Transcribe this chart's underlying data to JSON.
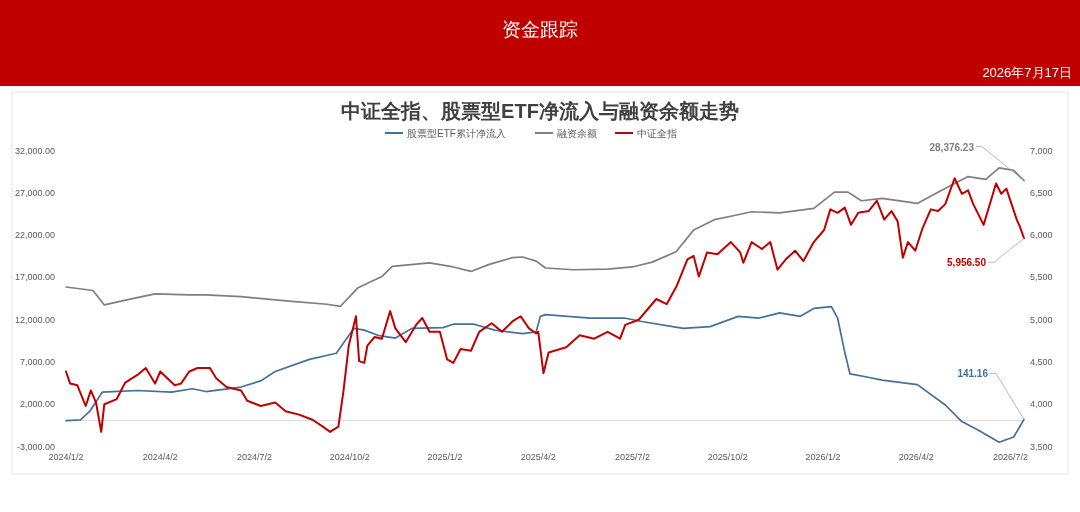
{
  "chart_data": {
    "type": "line",
    "title": "中证全指、股票型ETF净流入与融资余额走势",
    "annotations": [
      "资金跟踪",
      "2026年7月17日"
    ],
    "legend": "top",
    "xlim": [
      "2024-01-02",
      "2026-07-15"
    ],
    "xticks": [
      {
        "value": "2024-01-02",
        "label": "2024/1/2"
      },
      {
        "value": "2024-04-02",
        "label": "2024/4/2"
      },
      {
        "value": "2024-07-02",
        "label": "2024/7/2"
      },
      {
        "value": "2024-10-02",
        "label": "2024/10/2"
      },
      {
        "value": "2025-01-02",
        "label": "2025/1/2"
      },
      {
        "value": "2025-04-02",
        "label": "2025/4/2"
      },
      {
        "value": "2025-07-02",
        "label": "2025/7/2"
      },
      {
        "value": "2025-10-02",
        "label": "2025/10/2"
      },
      {
        "value": "2026-01-02",
        "label": "2026/1/2"
      },
      {
        "value": "2026-04-02",
        "label": "2026/4/2"
      },
      {
        "value": "2026-07-02",
        "label": "2026/7/2"
      }
    ],
    "ylim": [
      -3000,
      32000
    ],
    "yticks": [
      {
        "value": -3000,
        "label": "-3,000.00"
      },
      {
        "value": 2000,
        "label": "2,000.00"
      },
      {
        "value": 7000,
        "label": "7,000.00"
      },
      {
        "value": 12000,
        "label": "12,000.00"
      },
      {
        "value": 17000,
        "label": "17,000.00"
      },
      {
        "value": 22000,
        "label": "22,000.00"
      },
      {
        "value": 27000,
        "label": "27,000.00"
      },
      {
        "value": 32000,
        "label": "32,000.00"
      }
    ],
    "y2lim": [
      3500,
      7000
    ],
    "y2ticks": [
      {
        "value": 3500,
        "label": "3,500"
      },
      {
        "value": 4000,
        "label": "4,000"
      },
      {
        "value": 4500,
        "label": "4,500"
      },
      {
        "value": 5000,
        "label": "5,000"
      },
      {
        "value": 5500,
        "label": "5,500"
      },
      {
        "value": 6000,
        "label": "6,000"
      },
      {
        "value": 6500,
        "label": "6,500"
      },
      {
        "value": 7000,
        "label": "7,000"
      }
    ],
    "ref_lines": [
      {
        "axis": "y",
        "value": 0,
        "color": "#d9d9d9"
      }
    ],
    "series": [
      {
        "name": "股票型ETF累计净流入",
        "color": "#41719c",
        "x": [
          "2024-01-02",
          "2024-01-16",
          "2024-01-25",
          "2024-02-06",
          "2024-02-16",
          "2024-03-11",
          "2024-04-13",
          "2024-05-03",
          "2024-05-16",
          "2024-06-19",
          "2024-07-08",
          "2024-07-22",
          "2024-08-24",
          "2024-09-19",
          "2024-10-06",
          "2024-10-16",
          "2024-10-29",
          "2024-11-15",
          "2024-12-01",
          "2024-12-31",
          "2025-01-10",
          "2025-01-30",
          "2025-02-19",
          "2025-03-18",
          "2025-03-31",
          "2025-04-04",
          "2025-04-09",
          "2025-05-22",
          "2025-06-24",
          "2025-07-11",
          "2025-08-20",
          "2025-09-15",
          "2025-10-12",
          "2025-11-01",
          "2025-11-21",
          "2025-12-11",
          "2025-12-24",
          "2026-01-10",
          "2026-01-16",
          "2026-01-23",
          "2026-01-28",
          "2026-02-12",
          "2026-02-28",
          "2026-04-03",
          "2026-04-30",
          "2026-05-16",
          "2026-06-01",
          "2026-06-21",
          "2026-07-05",
          "2026-07-15"
        ],
        "values": [
          0,
          100,
          1110,
          3360,
          3440,
          3560,
          3360,
          3770,
          3440,
          3970,
          4700,
          5810,
          7240,
          7970,
          10910,
          10700,
          10090,
          9760,
          10910,
          11000,
          11400,
          11400,
          10700,
          10290,
          10500,
          12330,
          12540,
          12130,
          12130,
          11720,
          10910,
          11110,
          12330,
          12130,
          12740,
          12330,
          13270,
          13480,
          12130,
          8050,
          5520,
          5190,
          4790,
          4260,
          1850,
          -110,
          -1130,
          -2560,
          -1940,
          141.16
        ],
        "value_labels": [
          null,
          null,
          null,
          null,
          null,
          null,
          null,
          null,
          null,
          null,
          null,
          null,
          null,
          null,
          null,
          null,
          null,
          null,
          null,
          null,
          null,
          null,
          null,
          null,
          null,
          null,
          null,
          null,
          null,
          null,
          null,
          null,
          null,
          null,
          null,
          null,
          null,
          null,
          null,
          null,
          null,
          null,
          null,
          null,
          null,
          null,
          null,
          null,
          null,
          "141.16"
        ]
      },
      {
        "name": "融资余额",
        "color": "#7f7f7f",
        "x": [
          "2024-01-02",
          "2024-01-28",
          "2024-02-08",
          "2024-03-04",
          "2024-03-28",
          "2024-04-30",
          "2024-05-16",
          "2024-06-19",
          "2024-08-07",
          "2024-09-10",
          "2024-09-23",
          "2024-10-10",
          "2024-11-02",
          "2024-11-12",
          "2024-12-18",
          "2025-01-10",
          "2025-01-27",
          "2025-02-13",
          "2025-03-08",
          "2025-03-18",
          "2025-03-31",
          "2025-04-09",
          "2025-05-06",
          "2025-06-08",
          "2025-07-02",
          "2025-07-21",
          "2025-08-13",
          "2025-08-30",
          "2025-09-19",
          "2025-10-05",
          "2025-10-25",
          "2025-11-21",
          "2025-12-24",
          "2026-01-13",
          "2026-01-26",
          "2026-02-08",
          "2026-02-28",
          "2026-04-03",
          "2026-04-22",
          "2026-05-22",
          "2026-06-08",
          "2026-06-21",
          "2026-07-05",
          "2026-07-15"
        ],
        "values": [
          15800,
          15390,
          13680,
          14370,
          14990,
          14860,
          14860,
          14660,
          14090,
          13760,
          13520,
          15720,
          17030,
          18250,
          18660,
          18170,
          17640,
          18450,
          19270,
          19350,
          18860,
          18050,
          17840,
          17920,
          18170,
          18740,
          19960,
          22530,
          23760,
          24170,
          24700,
          24570,
          25100,
          27020,
          27020,
          26000,
          26290,
          25680,
          26940,
          28860,
          28530,
          29880,
          29590,
          28376.23
        ],
        "value_labels": [
          null,
          null,
          null,
          null,
          null,
          null,
          null,
          null,
          null,
          null,
          null,
          null,
          null,
          null,
          null,
          null,
          null,
          null,
          null,
          null,
          null,
          null,
          null,
          null,
          null,
          null,
          null,
          null,
          null,
          null,
          null,
          null,
          null,
          null,
          null,
          null,
          null,
          null,
          null,
          null,
          null,
          null,
          null,
          "28,376.23"
        ]
      },
      {
        "name": "中证全指",
        "color": "#c00000",
        "axis": "y2",
        "x": [
          "2024-01-02",
          "2024-01-06",
          "2024-01-13",
          "2024-01-21",
          "2024-01-26",
          "2024-01-31",
          "2024-02-05",
          "2024-02-08",
          "2024-02-20",
          "2024-02-28",
          "2024-03-04",
          "2024-03-11",
          "2024-03-19",
          "2024-03-28",
          "2024-04-02",
          "2024-04-16",
          "2024-04-22",
          "2024-04-30",
          "2024-05-08",
          "2024-05-20",
          "2024-05-26",
          "2024-06-05",
          "2024-06-19",
          "2024-06-25",
          "2024-07-08",
          "2024-07-22",
          "2024-08-01",
          "2024-08-14",
          "2024-08-27",
          "2024-09-06",
          "2024-09-13",
          "2024-09-21",
          "2024-09-26",
          "2024-10-01",
          "2024-10-08",
          "2024-10-11",
          "2024-10-16",
          "2024-10-19",
          "2024-10-26",
          "2024-11-02",
          "2024-11-10",
          "2024-11-15",
          "2024-11-20",
          "2024-11-25",
          "2024-12-05",
          "2024-12-11",
          "2024-12-18",
          "2024-12-28",
          "2025-01-04",
          "2025-01-10",
          "2025-01-17",
          "2025-01-27",
          "2025-02-04",
          "2025-02-16",
          "2025-02-26",
          "2025-03-08",
          "2025-03-16",
          "2025-03-24",
          "2025-03-31",
          "2025-04-02",
          "2025-04-07",
          "2025-04-12",
          "2025-04-29",
          "2025-05-12",
          "2025-05-26",
          "2025-06-08",
          "2025-06-20",
          "2025-06-25",
          "2025-07-08",
          "2025-07-25",
          "2025-08-04",
          "2025-08-14",
          "2025-08-24",
          "2025-08-30",
          "2025-09-04",
          "2025-09-12",
          "2025-09-22",
          "2025-10-05",
          "2025-10-14",
          "2025-10-17",
          "2025-10-25",
          "2025-11-04",
          "2025-11-12",
          "2025-11-19",
          "2025-11-27",
          "2025-12-06",
          "2025-12-14",
          "2025-12-24",
          "2026-01-03",
          "2026-01-09",
          "2026-01-16",
          "2026-01-23",
          "2026-01-29",
          "2026-02-05",
          "2026-02-15",
          "2026-02-23",
          "2026-03-02",
          "2026-03-09",
          "2026-03-15",
          "2026-03-20",
          "2026-03-25",
          "2026-04-01",
          "2026-04-08",
          "2026-04-16",
          "2026-04-23",
          "2026-04-30",
          "2026-05-09",
          "2026-05-16",
          "2026-05-22",
          "2026-05-27",
          "2026-06-06",
          "2026-06-13",
          "2026-06-18",
          "2026-06-23",
          "2026-06-28",
          "2026-07-03",
          "2026-07-08",
          "2026-07-11",
          "2026-07-15"
        ],
        "values": [
          4381,
          4238,
          4218,
          3973,
          4157,
          4014,
          3667,
          3994,
          4055,
          4247,
          4287,
          4340,
          4422,
          4238,
          4381,
          4218,
          4238,
          4381,
          4422,
          4422,
          4300,
          4198,
          4157,
          4035,
          3973,
          4014,
          3912,
          3871,
          3810,
          3729,
          3667,
          3729,
          4157,
          4687,
          5034,
          4504,
          4483,
          4687,
          4789,
          4769,
          5095,
          4891,
          4810,
          4728,
          4932,
          5013,
          4850,
          4850,
          4524,
          4483,
          4646,
          4626,
          4850,
          4952,
          4850,
          4973,
          5034,
          4891,
          4830,
          4850,
          4361,
          4606,
          4667,
          4810,
          4769,
          4850,
          4769,
          4932,
          4993,
          5238,
          5177,
          5401,
          5707,
          5748,
          5503,
          5789,
          5768,
          5911,
          5789,
          5666,
          5911,
          5829,
          5911,
          5585,
          5707,
          5809,
          5687,
          5911,
          6054,
          6298,
          6257,
          6319,
          6115,
          6257,
          6278,
          6400,
          6176,
          6278,
          6156,
          5727,
          5911,
          5809,
          6074,
          6298,
          6278,
          6360,
          6666,
          6482,
          6523,
          6360,
          6115,
          6400,
          6604,
          6482,
          6543,
          6360,
          6176,
          6094,
          5956.5
        ],
        "value_labels": [
          null,
          null,
          null,
          null,
          null,
          null,
          null,
          null,
          null,
          null,
          null,
          null,
          null,
          null,
          null,
          null,
          null,
          null,
          null,
          null,
          null,
          null,
          null,
          null,
          null,
          null,
          null,
          null,
          null,
          null,
          null,
          null,
          null,
          null,
          null,
          null,
          null,
          null,
          null,
          null,
          null,
          null,
          null,
          null,
          null,
          null,
          null,
          null,
          null,
          null,
          null,
          null,
          null,
          null,
          null,
          null,
          null,
          null,
          null,
          null,
          null,
          null,
          null,
          null,
          null,
          null,
          null,
          null,
          null,
          null,
          null,
          null,
          null,
          null,
          null,
          null,
          null,
          null,
          null,
          null,
          null,
          null,
          null,
          null,
          null,
          null,
          null,
          null,
          null,
          null,
          null,
          null,
          null,
          null,
          null,
          null,
          null,
          null,
          null,
          null,
          null,
          null,
          null,
          null,
          null,
          null,
          null,
          null,
          null,
          null,
          null,
          null,
          null,
          null,
          null,
          null,
          null,
          null,
          "5,956.50"
        ]
      }
    ]
  }
}
